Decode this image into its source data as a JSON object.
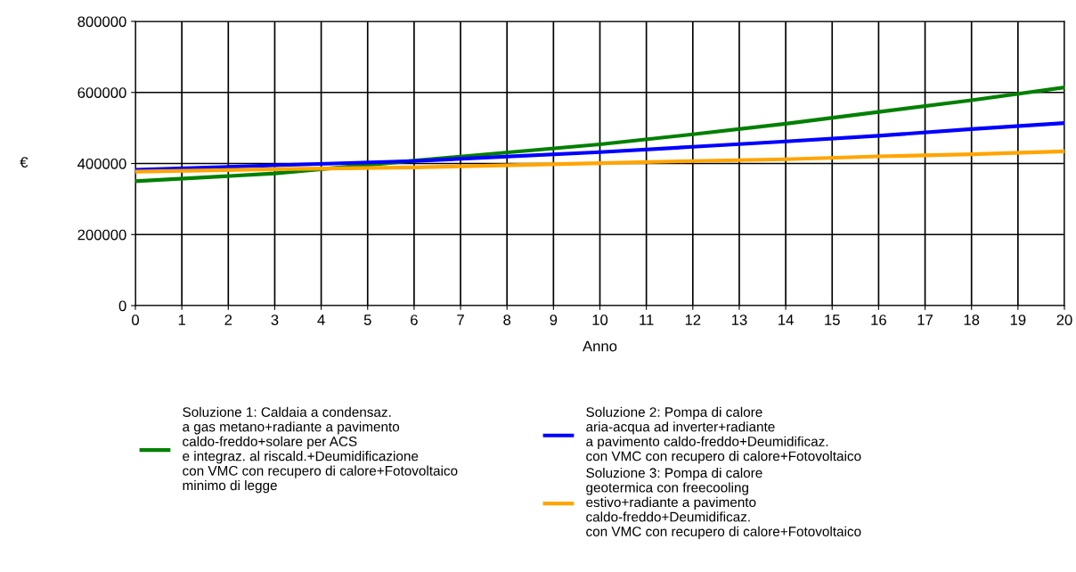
{
  "chart_data": {
    "type": "line",
    "xlabel": "Anno",
    "ylabel": "€",
    "x": [
      0,
      3,
      6,
      10,
      12,
      14,
      16,
      18,
      20
    ],
    "series": [
      {
        "name": "Soluzione 1: Caldaia a condensaz.\na gas metano+radiante a pavimento\ncaldo-freddo+solare per ACS\ne integraz. al riscald.+Deumidificazione\ncon VMC con recupero di calore+Fotovoltaico\nminimo di legge",
        "color": "#008000",
        "values": [
          350000,
          372000,
          408000,
          454000,
          482000,
          512000,
          545000,
          578000,
          614000
        ]
      },
      {
        "name": "Soluzione 2: Pompa di calore\naria-acqua ad inverter+radiante\na pavimento caldo-freddo+Deumidificaz.\ncon VMC con recupero di calore+Fotovoltaico",
        "color": "#0000ff",
        "values": [
          382000,
          395000,
          407000,
          432000,
          447000,
          462000,
          478000,
          497000,
          514000
        ]
      },
      {
        "name": "Soluzione 3: Pompa di calore\ngeotermica con freecooling\nestivo+radiante a pavimento\ncaldo-freddo+Deumidificaz.\ncon VMC con recupero di calore+Fotovoltaico",
        "color": "#ffa500",
        "values": [
          377000,
          384000,
          389000,
          401000,
          407000,
          412000,
          420000,
          426000,
          434000
        ]
      }
    ],
    "xlim": [
      0,
      20
    ],
    "xticks": [
      0,
      1,
      2,
      3,
      4,
      5,
      6,
      7,
      8,
      9,
      10,
      11,
      12,
      13,
      14,
      15,
      16,
      17,
      18,
      19,
      20
    ],
    "ylim": [
      0,
      800000
    ],
    "yticks": [
      0,
      200000,
      400000,
      600000,
      800000
    ],
    "grid": true,
    "legend": "bottom",
    "line_style": "solid",
    "marker": "none"
  }
}
